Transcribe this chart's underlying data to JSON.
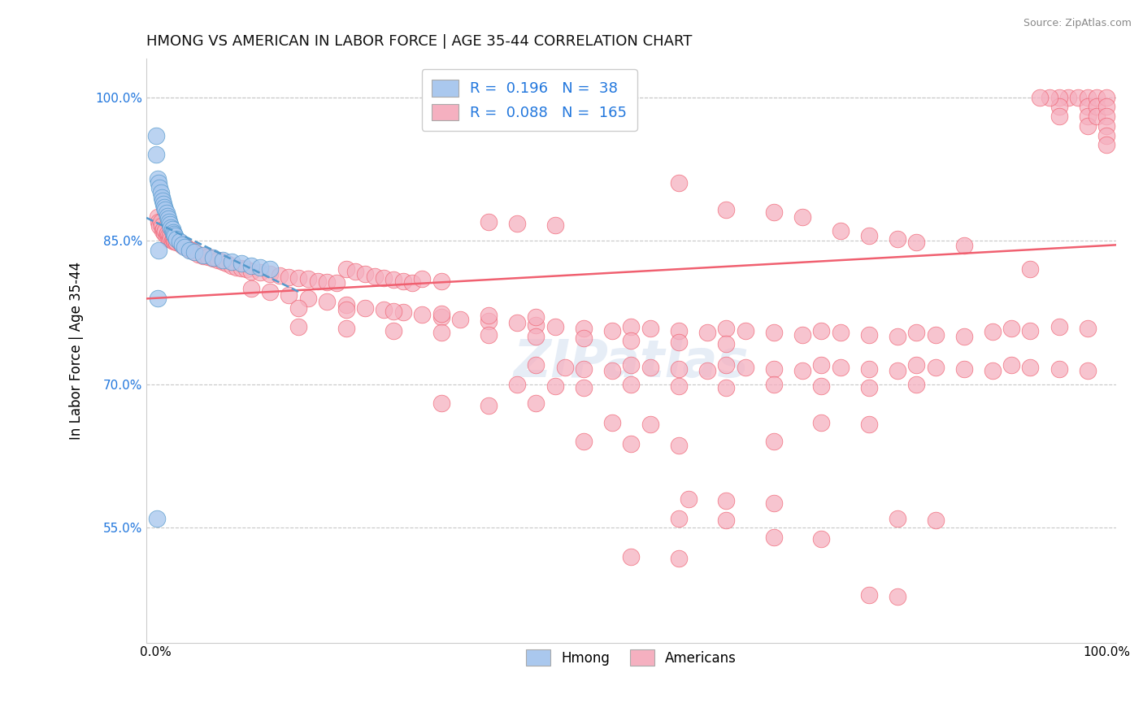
{
  "title": "HMONG VS AMERICAN IN LABOR FORCE | AGE 35-44 CORRELATION CHART",
  "source": "Source: ZipAtlas.com",
  "ylabel": "In Labor Force | Age 35-44",
  "xlim": [
    -0.01,
    1.01
  ],
  "ylim": [
    0.43,
    1.04
  ],
  "x_tick_labels": [
    "0.0%",
    "100.0%"
  ],
  "x_tick_positions": [
    0.0,
    1.0
  ],
  "y_tick_labels": [
    "55.0%",
    "70.0%",
    "85.0%",
    "100.0%"
  ],
  "y_tick_positions": [
    0.55,
    0.7,
    0.85,
    1.0
  ],
  "background_color": "#ffffff",
  "grid_color": "#c8c8c8",
  "watermark": "ZIPatlas",
  "hmong_color": "#aac8ee",
  "american_color": "#f5b0c0",
  "trendline_hmong_color": "#5599cc",
  "trendline_american_color": "#f06070",
  "hmong_scatter": [
    [
      0.0,
      0.96
    ],
    [
      0.0,
      0.94
    ],
    [
      0.002,
      0.915
    ],
    [
      0.003,
      0.91
    ],
    [
      0.004,
      0.905
    ],
    [
      0.005,
      0.9
    ],
    [
      0.006,
      0.895
    ],
    [
      0.007,
      0.892
    ],
    [
      0.008,
      0.888
    ],
    [
      0.009,
      0.885
    ],
    [
      0.01,
      0.882
    ],
    [
      0.011,
      0.879
    ],
    [
      0.012,
      0.876
    ],
    [
      0.013,
      0.873
    ],
    [
      0.014,
      0.87
    ],
    [
      0.015,
      0.867
    ],
    [
      0.016,
      0.864
    ],
    [
      0.017,
      0.862
    ],
    [
      0.018,
      0.859
    ],
    [
      0.019,
      0.857
    ],
    [
      0.02,
      0.855
    ],
    [
      0.022,
      0.852
    ],
    [
      0.025,
      0.849
    ],
    [
      0.028,
      0.846
    ],
    [
      0.03,
      0.843
    ],
    [
      0.035,
      0.84
    ],
    [
      0.04,
      0.838
    ],
    [
      0.05,
      0.835
    ],
    [
      0.06,
      0.832
    ],
    [
      0.07,
      0.83
    ],
    [
      0.08,
      0.828
    ],
    [
      0.09,
      0.826
    ],
    [
      0.1,
      0.824
    ],
    [
      0.11,
      0.822
    ],
    [
      0.12,
      0.82
    ],
    [
      0.001,
      0.56
    ],
    [
      0.002,
      0.79
    ],
    [
      0.003,
      0.84
    ]
  ],
  "american_scatter": [
    [
      0.002,
      0.875
    ],
    [
      0.003,
      0.87
    ],
    [
      0.004,
      0.865
    ],
    [
      0.005,
      0.87
    ],
    [
      0.006,
      0.865
    ],
    [
      0.007,
      0.86
    ],
    [
      0.008,
      0.862
    ],
    [
      0.009,
      0.858
    ],
    [
      0.01,
      0.86
    ],
    [
      0.011,
      0.855
    ],
    [
      0.012,
      0.858
    ],
    [
      0.013,
      0.855
    ],
    [
      0.014,
      0.852
    ],
    [
      0.015,
      0.855
    ],
    [
      0.016,
      0.852
    ],
    [
      0.017,
      0.85
    ],
    [
      0.018,
      0.852
    ],
    [
      0.019,
      0.849
    ],
    [
      0.02,
      0.85
    ],
    [
      0.022,
      0.848
    ],
    [
      0.025,
      0.848
    ],
    [
      0.028,
      0.845
    ],
    [
      0.03,
      0.844
    ],
    [
      0.035,
      0.841
    ],
    [
      0.038,
      0.84
    ],
    [
      0.04,
      0.838
    ],
    [
      0.045,
      0.836
    ],
    [
      0.05,
      0.834
    ],
    [
      0.055,
      0.833
    ],
    [
      0.06,
      0.831
    ],
    [
      0.065,
      0.83
    ],
    [
      0.07,
      0.828
    ],
    [
      0.075,
      0.826
    ],
    [
      0.08,
      0.824
    ],
    [
      0.085,
      0.822
    ],
    [
      0.09,
      0.821
    ],
    [
      0.095,
      0.82
    ],
    [
      0.1,
      0.818
    ],
    [
      0.11,
      0.817
    ],
    [
      0.12,
      0.815
    ],
    [
      0.13,
      0.814
    ],
    [
      0.14,
      0.812
    ],
    [
      0.15,
      0.811
    ],
    [
      0.16,
      0.81
    ],
    [
      0.17,
      0.808
    ],
    [
      0.18,
      0.807
    ],
    [
      0.19,
      0.806
    ],
    [
      0.2,
      0.82
    ],
    [
      0.21,
      0.818
    ],
    [
      0.22,
      0.815
    ],
    [
      0.23,
      0.813
    ],
    [
      0.24,
      0.811
    ],
    [
      0.25,
      0.809
    ],
    [
      0.26,
      0.808
    ],
    [
      0.27,
      0.806
    ],
    [
      0.28,
      0.81
    ],
    [
      0.3,
      0.808
    ],
    [
      0.1,
      0.8
    ],
    [
      0.12,
      0.797
    ],
    [
      0.14,
      0.793
    ],
    [
      0.16,
      0.79
    ],
    [
      0.18,
      0.786
    ],
    [
      0.2,
      0.783
    ],
    [
      0.22,
      0.78
    ],
    [
      0.24,
      0.778
    ],
    [
      0.26,
      0.775
    ],
    [
      0.28,
      0.773
    ],
    [
      0.3,
      0.77
    ],
    [
      0.32,
      0.768
    ],
    [
      0.35,
      0.766
    ],
    [
      0.38,
      0.764
    ],
    [
      0.4,
      0.762
    ],
    [
      0.42,
      0.76
    ],
    [
      0.45,
      0.758
    ],
    [
      0.48,
      0.756
    ],
    [
      0.5,
      0.76
    ],
    [
      0.52,
      0.758
    ],
    [
      0.55,
      0.756
    ],
    [
      0.58,
      0.754
    ],
    [
      0.6,
      0.758
    ],
    [
      0.62,
      0.756
    ],
    [
      0.65,
      0.754
    ],
    [
      0.68,
      0.752
    ],
    [
      0.7,
      0.756
    ],
    [
      0.72,
      0.754
    ],
    [
      0.75,
      0.752
    ],
    [
      0.78,
      0.75
    ],
    [
      0.8,
      0.754
    ],
    [
      0.82,
      0.752
    ],
    [
      0.85,
      0.75
    ],
    [
      0.88,
      0.755
    ],
    [
      0.9,
      0.758
    ],
    [
      0.92,
      0.756
    ],
    [
      0.95,
      0.76
    ],
    [
      0.98,
      0.758
    ],
    [
      0.15,
      0.78
    ],
    [
      0.2,
      0.778
    ],
    [
      0.25,
      0.776
    ],
    [
      0.3,
      0.774
    ],
    [
      0.35,
      0.772
    ],
    [
      0.4,
      0.77
    ],
    [
      0.15,
      0.76
    ],
    [
      0.2,
      0.758
    ],
    [
      0.25,
      0.756
    ],
    [
      0.3,
      0.754
    ],
    [
      0.35,
      0.752
    ],
    [
      0.4,
      0.75
    ],
    [
      0.45,
      0.748
    ],
    [
      0.5,
      0.746
    ],
    [
      0.55,
      0.744
    ],
    [
      0.6,
      0.742
    ],
    [
      0.35,
      0.87
    ],
    [
      0.38,
      0.868
    ],
    [
      0.42,
      0.866
    ],
    [
      0.55,
      0.91
    ],
    [
      0.6,
      0.882
    ],
    [
      0.65,
      0.88
    ],
    [
      0.68,
      0.875
    ],
    [
      0.72,
      0.86
    ],
    [
      0.75,
      0.855
    ],
    [
      0.78,
      0.852
    ],
    [
      0.8,
      0.848
    ],
    [
      0.85,
      0.845
    ],
    [
      0.4,
      0.72
    ],
    [
      0.43,
      0.718
    ],
    [
      0.45,
      0.716
    ],
    [
      0.48,
      0.714
    ],
    [
      0.5,
      0.72
    ],
    [
      0.52,
      0.718
    ],
    [
      0.55,
      0.716
    ],
    [
      0.58,
      0.714
    ],
    [
      0.6,
      0.72
    ],
    [
      0.62,
      0.718
    ],
    [
      0.65,
      0.716
    ],
    [
      0.68,
      0.714
    ],
    [
      0.7,
      0.72
    ],
    [
      0.72,
      0.718
    ],
    [
      0.75,
      0.716
    ],
    [
      0.78,
      0.714
    ],
    [
      0.8,
      0.72
    ],
    [
      0.82,
      0.718
    ],
    [
      0.85,
      0.716
    ],
    [
      0.88,
      0.714
    ],
    [
      0.9,
      0.72
    ],
    [
      0.92,
      0.718
    ],
    [
      0.95,
      0.716
    ],
    [
      0.98,
      0.714
    ],
    [
      0.38,
      0.7
    ],
    [
      0.42,
      0.698
    ],
    [
      0.45,
      0.696
    ],
    [
      0.5,
      0.7
    ],
    [
      0.55,
      0.698
    ],
    [
      0.6,
      0.696
    ],
    [
      0.65,
      0.7
    ],
    [
      0.7,
      0.698
    ],
    [
      0.75,
      0.696
    ],
    [
      0.8,
      0.7
    ],
    [
      0.3,
      0.68
    ],
    [
      0.35,
      0.678
    ],
    [
      0.4,
      0.68
    ],
    [
      0.45,
      0.64
    ],
    [
      0.5,
      0.638
    ],
    [
      0.55,
      0.636
    ],
    [
      0.48,
      0.66
    ],
    [
      0.52,
      0.658
    ],
    [
      0.56,
      0.58
    ],
    [
      0.6,
      0.578
    ],
    [
      0.65,
      0.576
    ],
    [
      0.7,
      0.66
    ],
    [
      0.75,
      0.658
    ],
    [
      0.65,
      0.64
    ],
    [
      0.55,
      0.56
    ],
    [
      0.6,
      0.558
    ],
    [
      0.65,
      0.54
    ],
    [
      0.7,
      0.538
    ],
    [
      0.5,
      0.52
    ],
    [
      0.55,
      0.518
    ],
    [
      0.78,
      0.56
    ],
    [
      0.82,
      0.558
    ],
    [
      0.75,
      0.48
    ],
    [
      0.78,
      0.478
    ],
    [
      0.92,
      0.82
    ],
    [
      0.96,
      1.0
    ],
    [
      0.97,
      1.0
    ],
    [
      0.98,
      1.0
    ],
    [
      0.98,
      0.99
    ],
    [
      0.98,
      0.98
    ],
    [
      0.98,
      0.97
    ],
    [
      0.99,
      1.0
    ],
    [
      0.99,
      0.99
    ],
    [
      0.99,
      0.98
    ],
    [
      1.0,
      1.0
    ],
    [
      1.0,
      0.99
    ],
    [
      1.0,
      0.98
    ],
    [
      1.0,
      0.97
    ],
    [
      1.0,
      0.96
    ],
    [
      1.0,
      0.95
    ],
    [
      0.95,
      1.0
    ],
    [
      0.95,
      0.99
    ],
    [
      0.95,
      0.98
    ],
    [
      0.94,
      1.0
    ],
    [
      0.93,
      1.0
    ]
  ]
}
